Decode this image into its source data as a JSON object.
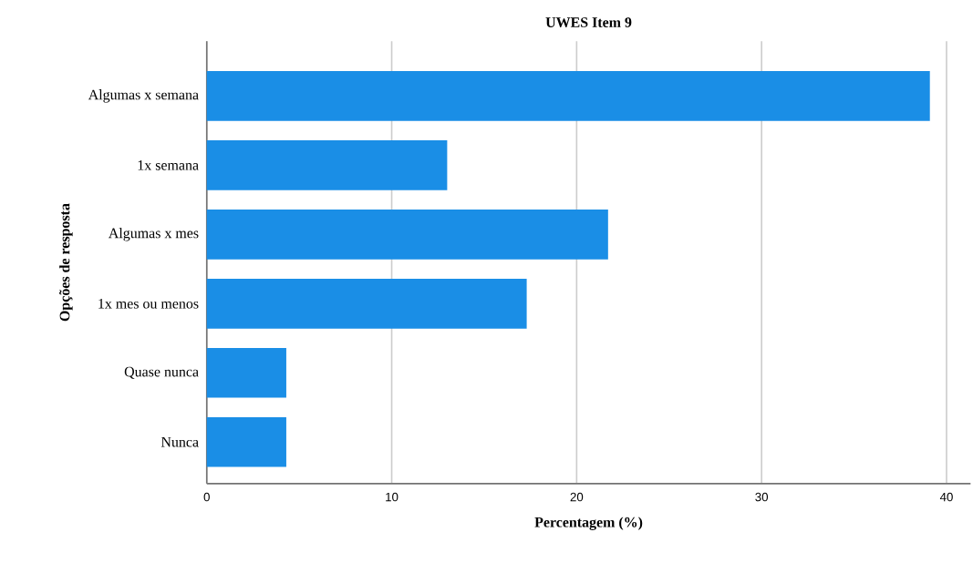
{
  "chart_data": {
    "type": "bar",
    "orientation": "horizontal",
    "title": "UWES Item 9",
    "xlabel": "Percentagem (%)",
    "ylabel": "Opções de resposta",
    "categories": [
      "Algumas x semana",
      "1x semana",
      "Algumas x mes",
      "1x mes ou menos",
      "Quase nunca",
      "Nunca"
    ],
    "values": [
      39.1,
      13.0,
      21.7,
      17.3,
      4.3,
      4.3
    ],
    "color": "#1a8ee6",
    "xlim": [
      0,
      41.3
    ],
    "xticks": [
      0,
      10,
      20,
      30,
      40
    ],
    "grid": "x"
  }
}
